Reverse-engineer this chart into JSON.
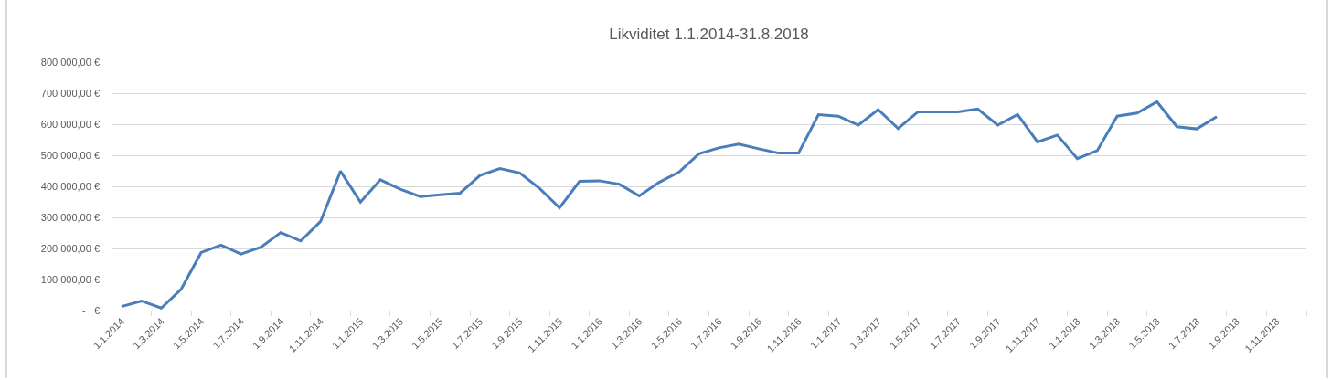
{
  "chart_data": {
    "type": "line",
    "title": "Likviditet 1.1.2014-31.8.2018",
    "categories": [
      "1.1.2014",
      null,
      "1.3.2014",
      null,
      "1.5.2014",
      null,
      "1.7.2014",
      null,
      "1.9.2014",
      null,
      "1.11.2014",
      null,
      "1.1.2015",
      null,
      "1.3.2015",
      null,
      "1.5.2015",
      null,
      "1.7.2015",
      null,
      "1.9.2015",
      null,
      "1.11.2015",
      null,
      "1.1.2016",
      null,
      "1.3.2016",
      null,
      "1.5.2016",
      null,
      "1.7.2016",
      null,
      "1.9.2016",
      null,
      "1.11.2016",
      null,
      "1.1.2017",
      null,
      "1.3.2017",
      null,
      "1.5.2017",
      null,
      "1.7.2017",
      null,
      "1.9.2017",
      null,
      "1.11.2017",
      null,
      "1.1.2018",
      null,
      "1.3.2018",
      null,
      "1.5.2018",
      null,
      "1.7.2018",
      null,
      "1.9.2018",
      null,
      "1.11.2018",
      null
    ],
    "values": [
      13000,
      31000,
      8000,
      69000,
      187000,
      211000,
      182000,
      204000,
      251000,
      224000,
      287000,
      449000,
      349000,
      421000,
      391000,
      367000,
      373000,
      378000,
      435000,
      457000,
      443000,
      393000,
      331000,
      416000,
      418000,
      407000,
      369000,
      413000,
      446000,
      505000,
      524000,
      536000,
      521000,
      507000,
      507000,
      631000,
      626000,
      597000,
      647000,
      586000,
      640000,
      640000,
      640000,
      649000,
      597000,
      631000,
      543000,
      565000,
      489000,
      515000,
      626000,
      636000,
      672000,
      592000,
      585000,
      624000,
      null,
      null,
      null,
      null
    ],
    "color": "#4a7ebb",
    "ylim": [
      0,
      800000
    ],
    "yticks": [
      {
        "value": 0,
        "label": "-   €"
      },
      {
        "value": 100000,
        "label": "100 000,00 €"
      },
      {
        "value": 200000,
        "label": "200 000,00 €"
      },
      {
        "value": 300000,
        "label": "300 000,00 €"
      },
      {
        "value": 400000,
        "label": "400 000,00 €"
      },
      {
        "value": 500000,
        "label": "500 000,00 €"
      },
      {
        "value": 600000,
        "label": "600 000,00 €"
      },
      {
        "value": 700000,
        "label": "700 000,00 €"
      },
      {
        "value": 800000,
        "label": "800 000,00 €"
      }
    ],
    "grid": "y",
    "line_style": "solid"
  }
}
